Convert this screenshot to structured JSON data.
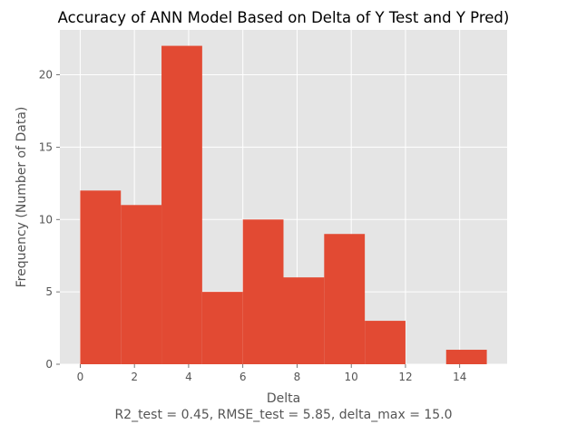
{
  "chart_data": {
    "type": "bar",
    "title": "Accuracy of ANN Model Based on Delta of Y Test and Y Pred)",
    "xlabel": "Delta",
    "ylabel": "Frequency (Number of Data)",
    "caption": "R2_test = 0.45, RMSE_test = 5.85, delta_max = 15.0",
    "bins": [
      {
        "x0": 0.0,
        "x1": 1.5,
        "count": 12
      },
      {
        "x0": 1.5,
        "x1": 3.0,
        "count": 11
      },
      {
        "x0": 3.0,
        "x1": 4.5,
        "count": 22
      },
      {
        "x0": 4.5,
        "x1": 6.0,
        "count": 5
      },
      {
        "x0": 6.0,
        "x1": 7.5,
        "count": 10
      },
      {
        "x0": 7.5,
        "x1": 9.0,
        "count": 6
      },
      {
        "x0": 9.0,
        "x1": 10.5,
        "count": 9
      },
      {
        "x0": 10.5,
        "x1": 12.0,
        "count": 3
      },
      {
        "x0": 12.0,
        "x1": 13.5,
        "count": 0
      },
      {
        "x0": 13.5,
        "x1": 15.0,
        "count": 1
      }
    ],
    "xlim": [
      -0.75,
      15.75
    ],
    "ylim": [
      0,
      23.1
    ],
    "xticks": [
      0,
      2,
      4,
      6,
      8,
      10,
      12,
      14
    ],
    "yticks": [
      0,
      5,
      10,
      15,
      20
    ],
    "grid": true,
    "colors": {
      "bar": "#e24a33",
      "plot_background": "#e5e5e5",
      "grid": "#ffffff",
      "text": "#555555",
      "title": "#000000"
    }
  }
}
